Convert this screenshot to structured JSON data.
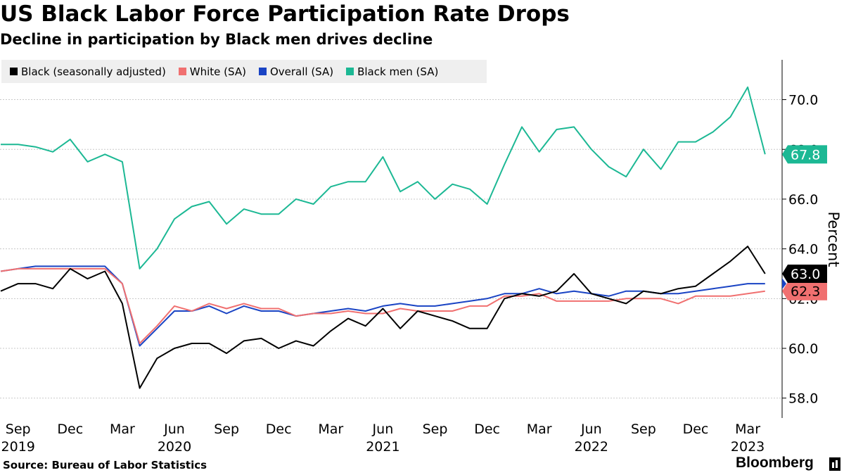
{
  "header": {
    "title": "US Black Labor Force Participation Rate Drops",
    "subtitle": "Decline in participation by Black men drives decline"
  },
  "footer": {
    "source": "Source: Bureau of Labor Statistics",
    "brand": "Bloomberg"
  },
  "chart_data": {
    "type": "line",
    "title": "US Black Labor Force Participation Rate Drops",
    "subtitle": "Decline in participation by Black men drives decline",
    "ylabel": "Percent",
    "xlabel": "",
    "ylim": [
      57.2,
      71.6
    ],
    "yticks": [
      "58.0",
      "60.0",
      "62.0",
      "64.0",
      "66.0",
      "68.0",
      "70.0"
    ],
    "x_start": "Aug 2019",
    "x_end": "Mar 2023",
    "xticks": [
      {
        "month": "Sep",
        "year": "2019",
        "index": 1
      },
      {
        "month": "Dec",
        "year": "",
        "index": 4
      },
      {
        "month": "Mar",
        "year": "",
        "index": 7
      },
      {
        "month": "Jun",
        "year": "2020",
        "index": 10
      },
      {
        "month": "Sep",
        "year": "",
        "index": 13
      },
      {
        "month": "Dec",
        "year": "",
        "index": 16
      },
      {
        "month": "Mar",
        "year": "",
        "index": 19
      },
      {
        "month": "Jun",
        "year": "2021",
        "index": 22
      },
      {
        "month": "Sep",
        "year": "",
        "index": 25
      },
      {
        "month": "Dec",
        "year": "",
        "index": 28
      },
      {
        "month": "Mar",
        "year": "",
        "index": 31
      },
      {
        "month": "Jun",
        "year": "2022",
        "index": 34
      },
      {
        "month": "Sep",
        "year": "",
        "index": 37
      },
      {
        "month": "Dec",
        "year": "",
        "index": 40
      },
      {
        "month": "Mar",
        "year": "2023",
        "index": 43
      }
    ],
    "legend_position": "top-left",
    "grid": true,
    "series": [
      {
        "name": "Black men (SA)",
        "color": "#1cb894",
        "end_label": "67.8",
        "values": [
          68.2,
          68.2,
          68.1,
          67.9,
          68.4,
          67.5,
          67.8,
          67.5,
          63.2,
          64.0,
          65.2,
          65.7,
          65.9,
          65.0,
          65.6,
          65.4,
          65.4,
          66.0,
          65.8,
          66.5,
          66.7,
          66.7,
          67.7,
          66.3,
          66.7,
          66.0,
          66.6,
          66.4,
          65.8,
          67.4,
          68.9,
          67.9,
          68.8,
          68.9,
          68.0,
          67.3,
          66.9,
          68.0,
          67.2,
          68.3,
          68.3,
          68.7,
          69.3,
          70.5,
          67.8
        ]
      },
      {
        "name": "Overall (SA)",
        "color": "#1a44c4",
        "end_label": "",
        "values": [
          63.1,
          63.2,
          63.3,
          63.3,
          63.3,
          63.3,
          63.3,
          62.6,
          60.1,
          60.8,
          61.5,
          61.5,
          61.7,
          61.4,
          61.7,
          61.5,
          61.5,
          61.3,
          61.4,
          61.5,
          61.6,
          61.5,
          61.7,
          61.8,
          61.7,
          61.7,
          61.8,
          61.9,
          62.0,
          62.2,
          62.2,
          62.4,
          62.2,
          62.3,
          62.2,
          62.1,
          62.3,
          62.3,
          62.2,
          62.2,
          62.3,
          62.4,
          62.5,
          62.6,
          62.6
        ]
      },
      {
        "name": "White (SA)",
        "color": "#f07070",
        "end_label": "62.3",
        "values": [
          63.1,
          63.2,
          63.2,
          63.2,
          63.2,
          63.2,
          63.2,
          62.6,
          60.2,
          60.9,
          61.7,
          61.5,
          61.8,
          61.6,
          61.8,
          61.6,
          61.6,
          61.3,
          61.4,
          61.4,
          61.5,
          61.4,
          61.4,
          61.6,
          61.5,
          61.5,
          61.5,
          61.7,
          61.7,
          62.1,
          62.1,
          62.2,
          61.9,
          61.9,
          61.9,
          61.9,
          62.0,
          62.0,
          62.0,
          61.8,
          62.1,
          62.1,
          62.1,
          62.2,
          62.3
        ]
      },
      {
        "name": "Black (seasonally adjusted)",
        "color": "#000000",
        "end_label": "63.0",
        "values": [
          62.3,
          62.6,
          62.6,
          62.4,
          63.2,
          62.8,
          63.1,
          61.8,
          58.4,
          59.6,
          60.0,
          60.2,
          60.2,
          59.8,
          60.3,
          60.4,
          60.0,
          60.3,
          60.1,
          60.7,
          61.2,
          60.9,
          61.6,
          60.8,
          61.5,
          61.3,
          61.1,
          60.8,
          60.8,
          62.0,
          62.2,
          62.1,
          62.3,
          63.0,
          62.2,
          62.0,
          61.8,
          62.3,
          62.2,
          62.4,
          62.5,
          63.0,
          63.5,
          64.1,
          63.0
        ]
      }
    ],
    "legend_order": [
      "Black (seasonally adjusted)",
      "White (SA)",
      "Overall (SA)",
      "Black men (SA)"
    ]
  }
}
